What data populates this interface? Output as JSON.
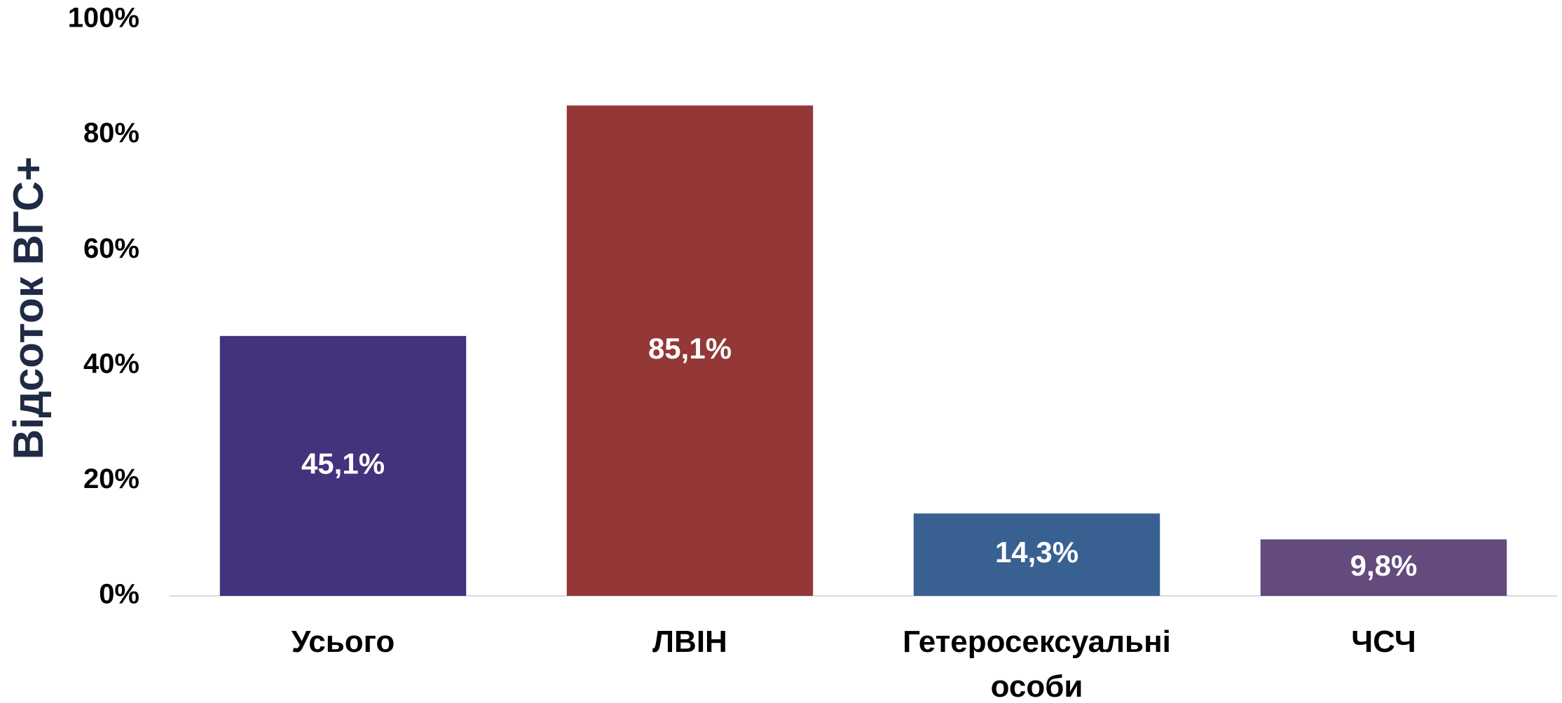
{
  "chart_data": {
    "type": "bar",
    "ylabel": "Відсоток ВГС+",
    "categories": [
      "Усього",
      "ЛВІН",
      "Гетеросексуальні особи",
      "ЧСЧ"
    ],
    "values": [
      45.1,
      85.1,
      14.3,
      9.8
    ],
    "value_labels": [
      "45,1%",
      "85,1%",
      "14,3%",
      "9,8%"
    ],
    "colors": [
      "#43327c",
      "#933737",
      "#386192",
      "#634b7d"
    ],
    "ylim": [
      0,
      100
    ],
    "yticks": [
      {
        "value": 0,
        "label": "0%"
      },
      {
        "value": 20,
        "label": "20%"
      },
      {
        "value": 40,
        "label": "40%"
      },
      {
        "value": 60,
        "label": "60%"
      },
      {
        "value": 80,
        "label": "80%"
      },
      {
        "value": 100,
        "label": "100%"
      }
    ],
    "grid": false
  }
}
